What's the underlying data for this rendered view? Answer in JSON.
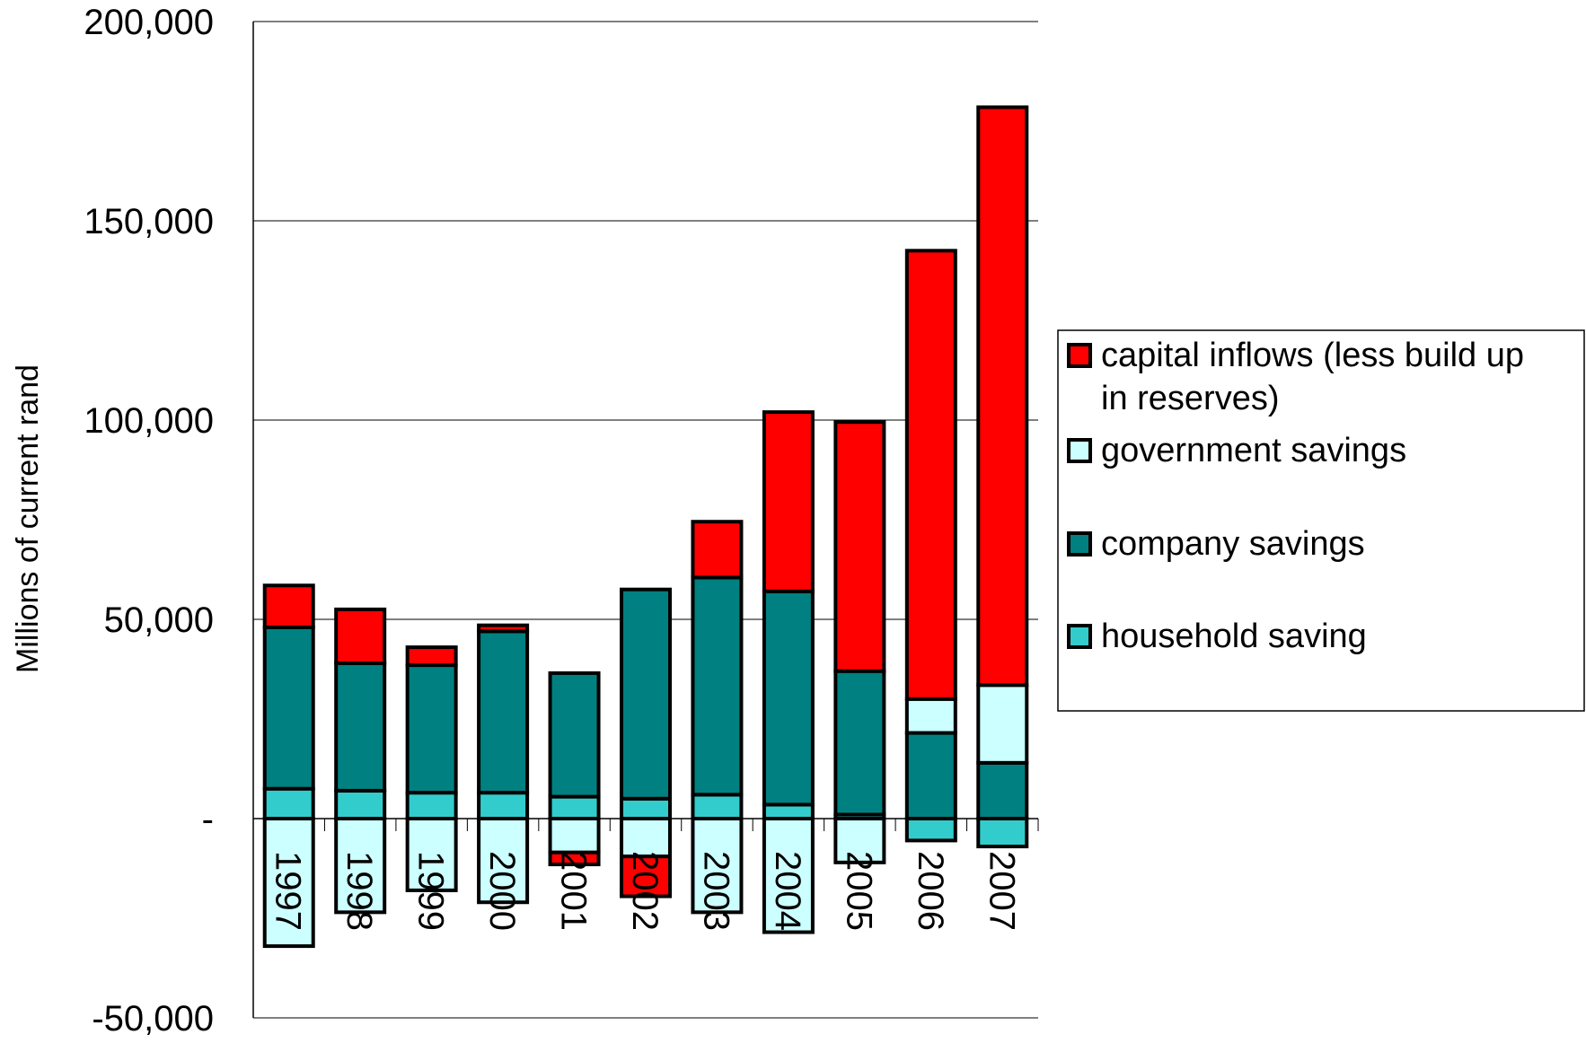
{
  "chart_data": {
    "type": "bar",
    "stacked": true,
    "title": "",
    "xlabel": "",
    "ylabel": "Millions of current rand",
    "ylim": [
      -50000,
      200000
    ],
    "yticks": [
      {
        "value": 200000,
        "label": "200,000"
      },
      {
        "value": 150000,
        "label": "150,000"
      },
      {
        "value": 100000,
        "label": "100,000"
      },
      {
        "value": 50000,
        "label": "50,000"
      },
      {
        "value": 0,
        "label": "-"
      },
      {
        "value": -50000,
        "label": "-50,000"
      }
    ],
    "grid": true,
    "legend_position": "right",
    "categories": [
      "1997",
      "1998",
      "1999",
      "2000",
      "2001",
      "2002",
      "2003",
      "2004",
      "2005",
      "2006",
      "2007"
    ],
    "series": [
      {
        "name": "household saving",
        "color": "#33CCCC",
        "values": [
          7500,
          7000,
          6500,
          6500,
          5500,
          5000,
          6000,
          3500,
          1000,
          -5500,
          -7000
        ]
      },
      {
        "name": "company savings",
        "color": "#008080",
        "values": [
          40500,
          32000,
          32000,
          40500,
          31000,
          52500,
          54500,
          53500,
          36000,
          21500,
          14000
        ]
      },
      {
        "name": "government savings",
        "color": "#CCFFFF",
        "values": [
          -32000,
          -23500,
          -18000,
          -21000,
          -8500,
          -9500,
          -23500,
          -28500,
          -11000,
          8500,
          19500
        ]
      },
      {
        "name": "capital inflows (less build up in reserves)",
        "color": "#FF0000",
        "values": [
          10500,
          13500,
          4500,
          1500,
          -3000,
          -10000,
          14000,
          45000,
          62500,
          112500,
          145000
        ]
      }
    ],
    "legend_order": [
      "capital inflows (less build up in reserves)",
      "government savings",
      "company savings",
      "household saving"
    ],
    "legend_lines": {
      "capital inflows (less build up in reserves)": [
        "capital inflows (less build up",
        "in reserves)"
      ],
      "government savings": [
        "government savings"
      ],
      "company savings": [
        "company savings"
      ],
      "household saving": [
        "household saving"
      ]
    }
  }
}
